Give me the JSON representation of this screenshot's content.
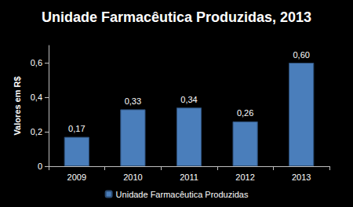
{
  "chart_data": {
    "type": "bar",
    "title": "Unidade Farmacêutica Produzidas, 2013",
    "y_label": "Valores em R$",
    "categories": [
      "2009",
      "2010",
      "2011",
      "2012",
      "2013"
    ],
    "series": [
      {
        "name": "Unidade Farmacêutica Produzidas",
        "color": "#4a7ebb",
        "values": [
          0.17,
          0.33,
          0.34,
          0.26,
          0.6
        ],
        "value_labels": [
          "0,17",
          "0,33",
          "0,34",
          "0,26",
          "0,60"
        ]
      }
    ],
    "ylim": [
      0,
      0.7
    ],
    "yticks": [
      0,
      {
        "value": 0.2,
        "label": "0,2"
      },
      {
        "value": 0.4,
        "label": "0,4"
      },
      {
        "value": 0.6,
        "label": "0,6"
      }
    ],
    "grid": false,
    "data_labels": true,
    "legend": "bottom"
  }
}
